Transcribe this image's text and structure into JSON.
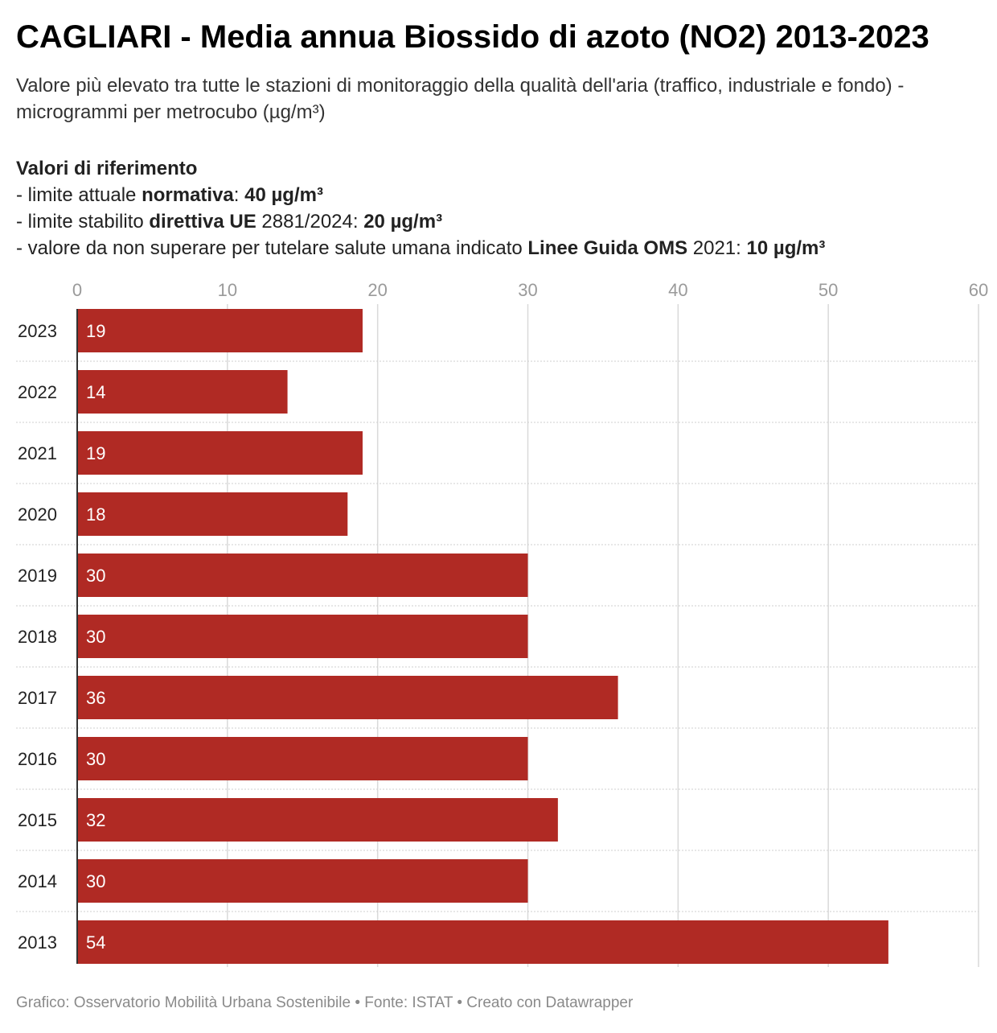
{
  "header": {
    "title": "CAGLIARI - Media annua Biossido di azoto (NO2) 2013-2023",
    "subtitle": "Valore più elevato tra tutte le stazioni di monitoraggio della qualità dell'aria (traffico, industriale e fondo) - microgrammi per metrocubo (µg/m³)"
  },
  "reference": {
    "heading": "Valori di riferimento",
    "line1": {
      "prefix": "- limite attuale ",
      "bold1": "normativa",
      "mid": ": ",
      "bold2": "40 µg/m³"
    },
    "line2": {
      "prefix": "- limite stabilito ",
      "bold1": "direttiva UE",
      "mid": " 2881/2024: ",
      "bold2": "20 µg/m³"
    },
    "line3": {
      "prefix": "- valore da non superare per tutelare salute umana indicato ",
      "bold1": "Linee Guida OMS",
      "mid": " 2021: ",
      "bold2": "10 µg/m³"
    }
  },
  "colors": {
    "bar": "#b02a24",
    "grid": "#d9d9d9",
    "row_divider": "#cfcfcf",
    "axis": "#333333"
  },
  "chart_data": {
    "type": "bar",
    "orientation": "horizontal",
    "categories": [
      "2023",
      "2022",
      "2021",
      "2020",
      "2019",
      "2018",
      "2017",
      "2016",
      "2015",
      "2014",
      "2013"
    ],
    "values": [
      19,
      14,
      19,
      18,
      30,
      30,
      36,
      30,
      32,
      30,
      54
    ],
    "value_labels": [
      "19",
      "14",
      "19",
      "18",
      "30",
      "30",
      "36",
      "30",
      "32",
      "30",
      "54"
    ],
    "x_ticks": [
      0,
      10,
      20,
      30,
      40,
      50,
      60
    ],
    "xlim": [
      0,
      60
    ],
    "title": "CAGLIARI - Media annua Biossido di azoto (NO2) 2013-2023",
    "xlabel": "",
    "ylabel": "",
    "grid": true,
    "x_axis_position": "top"
  },
  "footer": {
    "text": "Grafico: Osservatorio Mobilità Urbana Sostenibile • Fonte: ISTAT • Creato con Datawrapper"
  }
}
